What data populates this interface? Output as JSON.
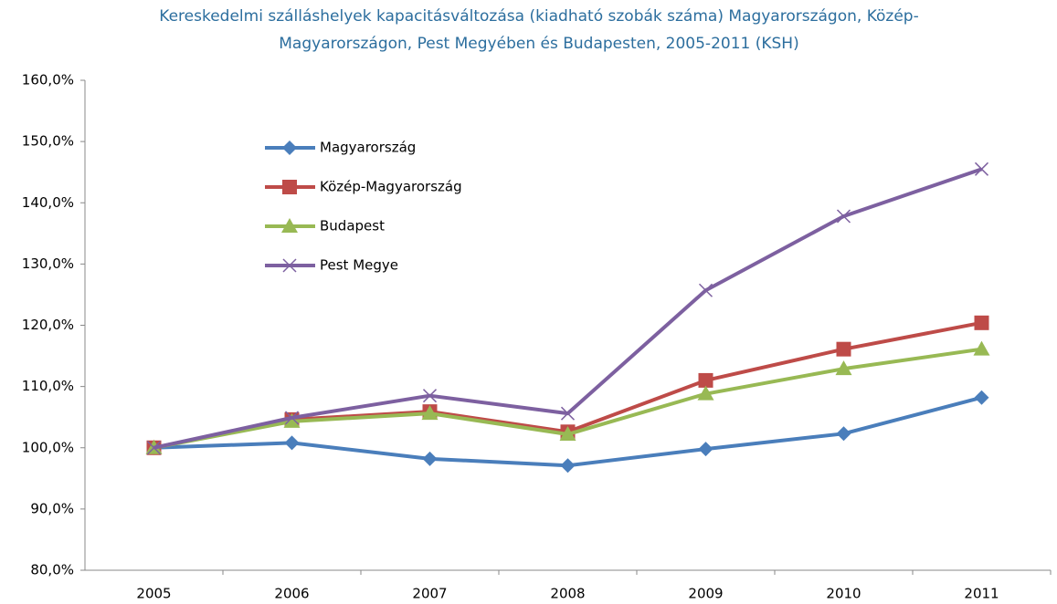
{
  "chart_data": {
    "type": "line",
    "title": [
      "Kereskedelmi szálláshelyek kapacitásváltozása (kiadható szobák száma) Magyarországon, Közép-",
      "Magyarországon, Pest Megyében és Budapesten, 2005-2011 (KSH)"
    ],
    "categories": [
      "2005",
      "2006",
      "2007",
      "2008",
      "2009",
      "2010",
      "2011"
    ],
    "series": [
      {
        "name": "Magyarország",
        "color": "#4a7ebb",
        "marker": "diamond",
        "values": [
          100,
          100.8,
          98.2,
          97.1,
          99.8,
          102.3,
          108.2
        ]
      },
      {
        "name": "Közép-Magyarország",
        "color": "#be4b48",
        "marker": "square",
        "values": [
          100,
          104.6,
          105.9,
          102.6,
          111.0,
          116.1,
          120.4
        ]
      },
      {
        "name": "Budapest",
        "color": "#98b954",
        "marker": "triangle",
        "values": [
          100,
          104.3,
          105.6,
          102.2,
          108.8,
          112.9,
          116.1
        ]
      },
      {
        "name": "Pest Megye",
        "color": "#7d60a0",
        "marker": "x",
        "values": [
          100,
          104.9,
          108.5,
          105.6,
          125.7,
          137.8,
          145.5
        ]
      }
    ],
    "ylim": [
      80,
      160
    ],
    "yticks": [
      {
        "value": 80,
        "label": "80,0%"
      },
      {
        "value": 90,
        "label": "90,0%"
      },
      {
        "value": 100,
        "label": "100,0%"
      },
      {
        "value": 110,
        "label": "110,0%"
      },
      {
        "value": 120,
        "label": "120,0%"
      },
      {
        "value": 130,
        "label": "130,0%"
      },
      {
        "value": 140,
        "label": "140,0%"
      },
      {
        "value": 150,
        "label": "150,0%"
      },
      {
        "value": 160,
        "label": "160,0%"
      }
    ],
    "grid": false,
    "legend": "upper left"
  }
}
